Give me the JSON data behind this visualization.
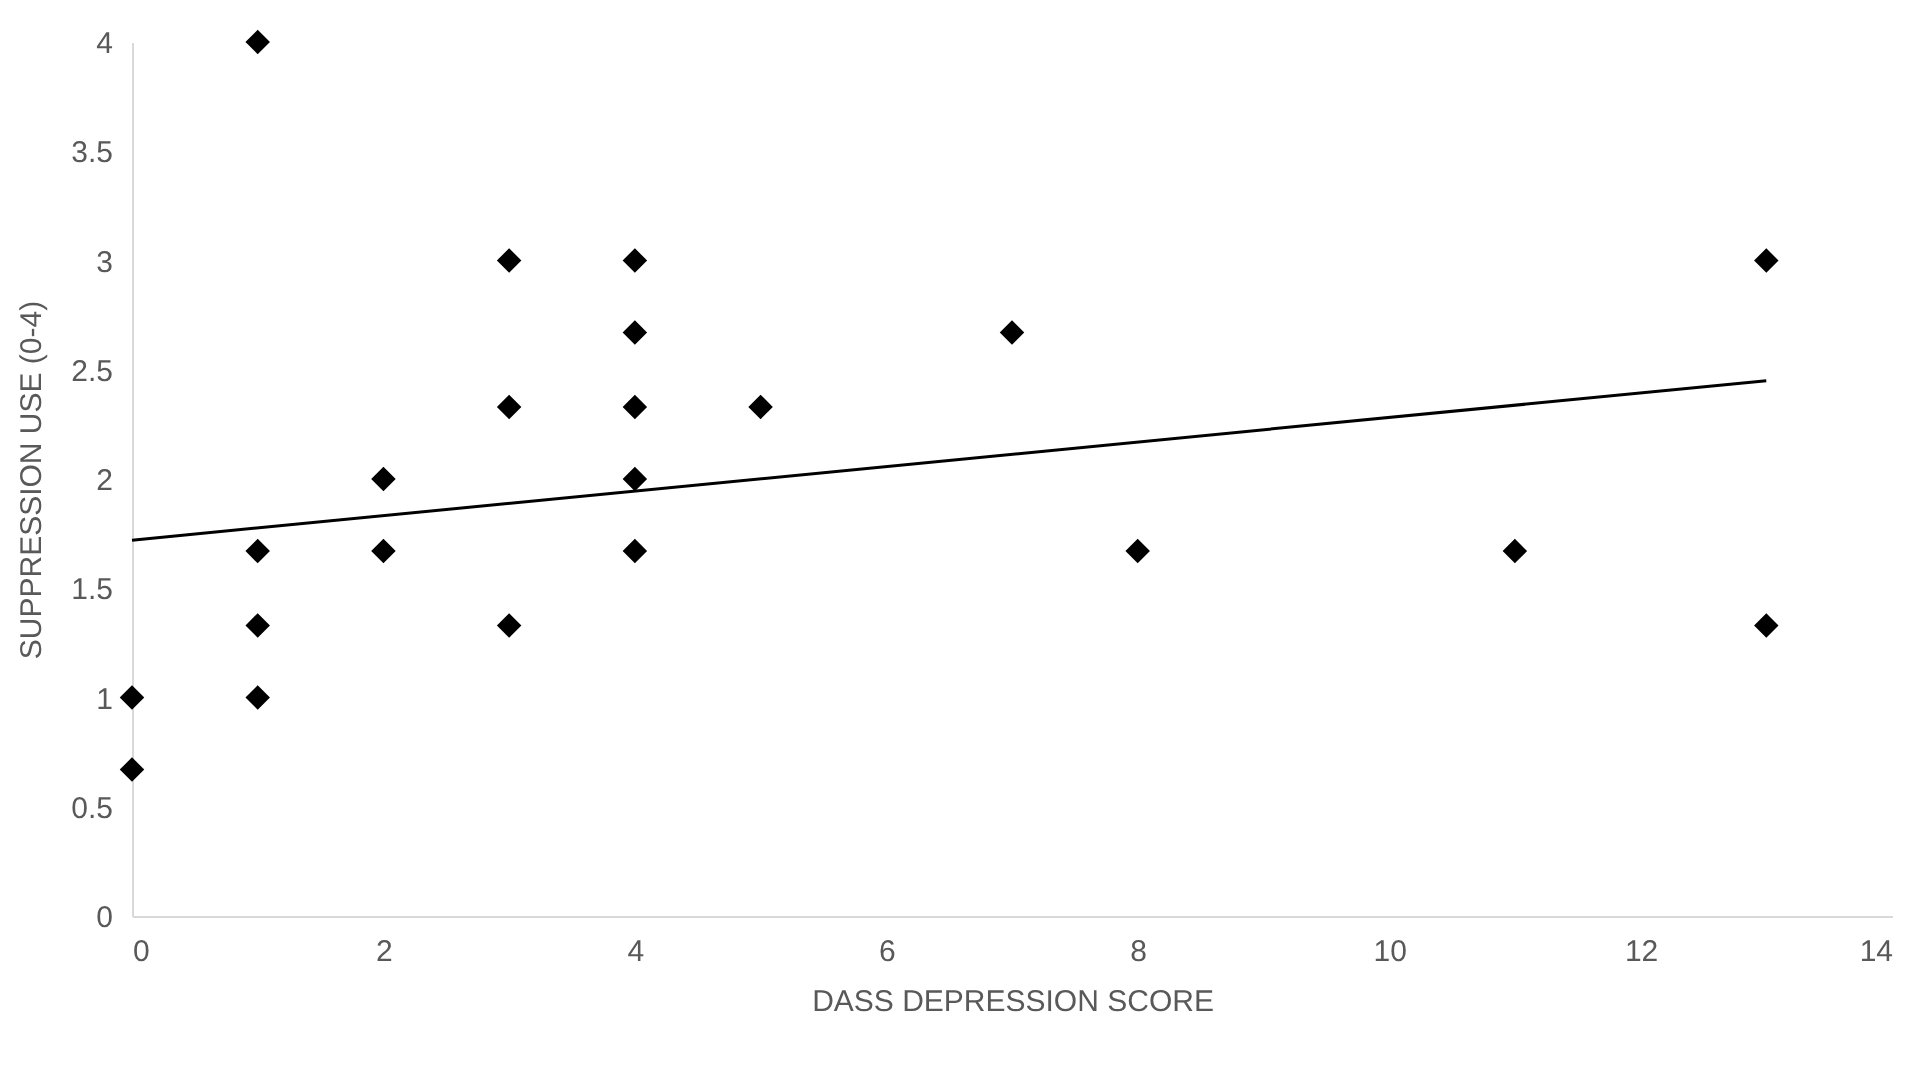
{
  "chart_data": {
    "type": "scatter",
    "xlabel": "DASS DEPRESSION SCORE",
    "ylabel": "SUPPRESSION USE (0-4)",
    "x": [
      0,
      0,
      1,
      1,
      1,
      1,
      2,
      2,
      3,
      3,
      3,
      4,
      4,
      4,
      4,
      4,
      5,
      7,
      8,
      11,
      13,
      13
    ],
    "series": [
      {
        "color": "#000000",
        "marker": "diamond",
        "values": [
          1,
          0.67,
          4,
          1.67,
          1.33,
          1,
          2,
          1.67,
          3,
          2.33,
          1.33,
          3,
          2.67,
          2.33,
          2,
          1.67,
          2.33,
          2.67,
          1.67,
          1.67,
          3,
          1.33
        ]
      },
      {
        "type": "line",
        "color": "#000000",
        "marker": "none",
        "line_style": "solid",
        "x": [
          0,
          13
        ],
        "values": [
          1.72,
          2.45
        ]
      }
    ],
    "xlim": [
      0,
      14
    ],
    "xticks": [
      0,
      2,
      4,
      6,
      8,
      10,
      12,
      14
    ],
    "ylim": [
      0,
      4
    ],
    "yticks": [
      0,
      0.5,
      1,
      1.5,
      2,
      2.5,
      3,
      3.5,
      4
    ],
    "grid": false
  }
}
